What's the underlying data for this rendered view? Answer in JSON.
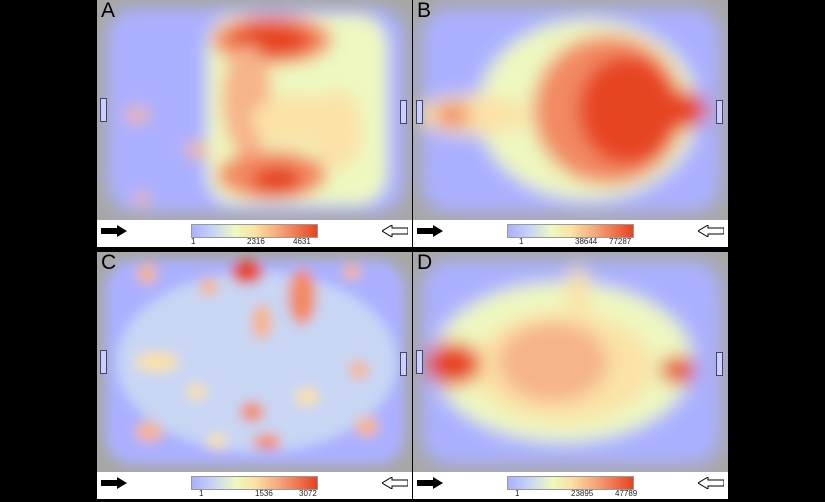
{
  "panels": [
    {
      "letter": "A",
      "scale": {
        "min": "1",
        "mid": "2316",
        "max": "4631"
      }
    },
    {
      "letter": "B",
      "scale": {
        "min": "1",
        "mid": "38644",
        "max": "77287"
      }
    },
    {
      "letter": "C",
      "scale": {
        "min": "1",
        "mid": "1536",
        "max": "3072"
      }
    },
    {
      "letter": "D",
      "scale": {
        "min": "1",
        "mid": "23895",
        "max": "47789"
      }
    }
  ],
  "colors": {
    "low": "#aab0ff",
    "mid": "#eef8c0",
    "high": "#e64420",
    "frame": "#a7a7a7"
  }
}
